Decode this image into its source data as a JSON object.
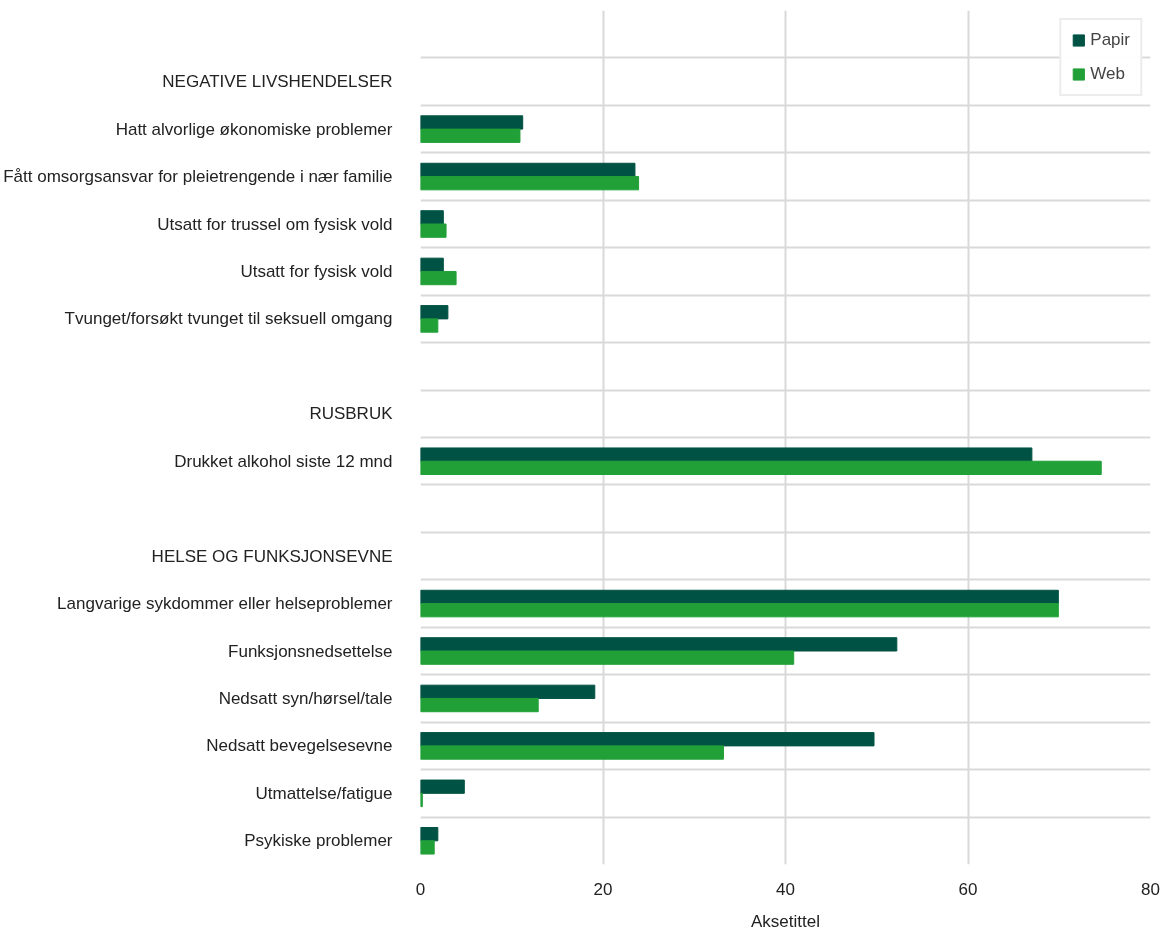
{
  "chart_data": {
    "type": "bar",
    "orientation": "horizontal",
    "xlabel": "Aksetittel",
    "categories": [
      null,
      "NEGATIVE LIVSHENDELSER",
      "Hatt alvorlige økonomiske problemer",
      "Fått omsorgsansvar for pleietrengende i nær familie",
      "Utsatt for trussel om fysisk vold",
      "Utsatt for fysisk vold",
      "Tvunget/forsøkt tvunget til seksuell omgang",
      null,
      "RUSBRUK",
      "Drukket alkohol siste 12 mnd",
      null,
      "HELSE OG FUNKSJONSEVNE",
      "Langvarige sykdommer eller helseproblemer",
      "Funksjonsnedsettelse",
      "Nedsatt syn/hørsel/tale",
      "Nedsatt bevegelsesevne",
      "Utmattelse/fatigue",
      "Psykiske problemer"
    ],
    "series": [
      {
        "name": "Papir",
        "color": "#005344",
        "values": [
          null,
          null,
          11.2,
          23.5,
          2.5,
          2.5,
          3.0,
          null,
          null,
          67.0,
          null,
          null,
          69.9,
          52.2,
          19.1,
          49.7,
          4.8,
          1.9
        ]
      },
      {
        "name": "Web",
        "color": "#21a038",
        "values": [
          null,
          null,
          10.9,
          23.9,
          2.8,
          3.9,
          1.9,
          null,
          null,
          74.6,
          null,
          null,
          69.9,
          40.9,
          12.9,
          33.2,
          0.2,
          1.5
        ]
      }
    ],
    "xlim": [
      0,
      80
    ],
    "xticks": [
      0,
      20,
      40,
      60,
      80
    ],
    "grid": true,
    "legend": "top right"
  }
}
